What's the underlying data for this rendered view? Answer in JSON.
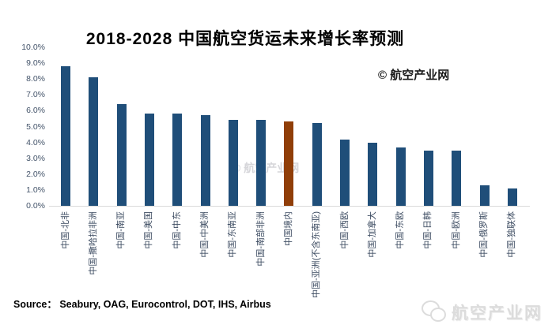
{
  "title": "2018-2028 中国航空货运未来增长率预测",
  "copyright_label": "© 航空产业网",
  "watermark_center": "© 航空产业网",
  "source_label": "Source：  Seabury, OAG, Eurocontrol, DOT, IHS, Airbus",
  "footer_logo": {
    "icon": "wechat-icon",
    "text": "航空产业网"
  },
  "colors": {
    "bar_primary": "#1F4E79",
    "bar_highlight": "#903E08",
    "axis_line": "#D9D9D9",
    "tick_label_color": "#44546A",
    "watermark_color": "#D6D6DA"
  },
  "chart_data": {
    "type": "bar",
    "title": "2018-2028 中国航空货运未来增长率预测",
    "xlabel": "",
    "ylabel": "",
    "unit": "%",
    "ylim": [
      0,
      10
    ],
    "grid": false,
    "legend": false,
    "y_ticks": [
      "0.0%",
      "1.0%",
      "2.0%",
      "3.0%",
      "4.0%",
      "5.0%",
      "6.0%",
      "7.0%",
      "8.0%",
      "9.0%",
      "10.0%"
    ],
    "categories": [
      "中国-北非",
      "中国-撒哈拉非洲",
      "中国-南亚",
      "中国-美国",
      "中国-中东",
      "中国-中美洲",
      "中国-东南亚",
      "中国-南部非洲",
      "中国境内",
      "中国-亚洲(不含东南亚)",
      "中国-西欧",
      "中国-加拿大",
      "中国-东欧",
      "中国-日韩",
      "中国-欧洲",
      "中国-俄罗斯",
      "中国-独联体"
    ],
    "values": [
      8.8,
      8.1,
      6.4,
      5.8,
      5.8,
      5.7,
      5.4,
      5.4,
      5.3,
      5.2,
      4.2,
      4.0,
      3.7,
      3.5,
      3.5,
      1.3,
      1.1
    ],
    "highlight_category": "中国境内",
    "highlight_index": 8
  }
}
